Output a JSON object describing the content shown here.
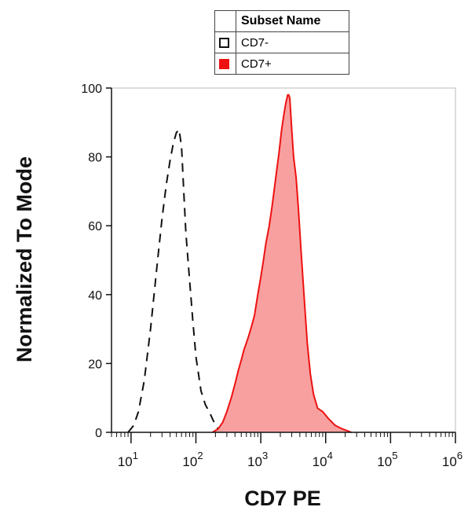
{
  "legend": {
    "header": "Subset Name",
    "items": [
      {
        "label": "CD7-",
        "style": "open-dashed",
        "color": "#111111"
      },
      {
        "label": "CD7+",
        "style": "filled",
        "color": "#ee1111"
      }
    ]
  },
  "chart_data": {
    "type": "area",
    "title": "",
    "xlabel": "CD7 PE",
    "ylabel": "Normalized To Mode",
    "xscale": "log",
    "xlim": [
      5,
      1000000
    ],
    "ylim": [
      0,
      100
    ],
    "yticks": [
      0,
      20,
      40,
      60,
      80,
      100
    ],
    "xticks": [
      {
        "base": "10",
        "exp": "1",
        "value": 10
      },
      {
        "base": "10",
        "exp": "2",
        "value": 100
      },
      {
        "base": "10",
        "exp": "3",
        "value": 1000
      },
      {
        "base": "10",
        "exp": "4",
        "value": 10000
      },
      {
        "base": "10",
        "exp": "5",
        "value": 100000
      },
      {
        "base": "10",
        "exp": "6",
        "value": 1000000
      }
    ],
    "grid": false,
    "legend_position": "top-center",
    "series": [
      {
        "name": "CD7-",
        "style": "dashed-outline",
        "color": "#111111",
        "x": [
          9,
          11,
          13,
          16,
          20,
          25,
          30,
          35,
          40,
          45,
          50,
          55,
          60,
          65,
          70,
          80,
          90,
          100,
          120,
          140,
          160,
          190,
          220,
          250
        ],
        "y": [
          0,
          2,
          6,
          15,
          30,
          48,
          62,
          72,
          79,
          84,
          87,
          88,
          83,
          70,
          58,
          44,
          32,
          22,
          12,
          8,
          6,
          3,
          1,
          0
        ]
      },
      {
        "name": "CD7+",
        "style": "filled",
        "color": "#ee1111",
        "fill": "#f8a0a0",
        "x": [
          180,
          220,
          260,
          300,
          350,
          400,
          450,
          500,
          550,
          600,
          650,
          700,
          750,
          800,
          900,
          1000,
          1100,
          1200,
          1350,
          1500,
          1700,
          1900,
          2100,
          2300,
          2450,
          2600,
          2700,
          2800,
          3000,
          3200,
          3500,
          3800,
          4200,
          4700,
          5200,
          5800,
          6500,
          7500,
          9000,
          11000,
          14000,
          18000,
          25000
        ],
        "y": [
          0,
          1,
          3,
          6,
          10,
          14,
          18,
          21,
          24,
          26,
          28,
          30,
          32,
          34,
          40,
          45,
          50,
          55,
          60,
          66,
          74,
          81,
          88,
          93,
          96,
          98,
          98,
          97,
          88,
          80,
          74,
          65,
          52,
          38,
          26,
          17,
          11,
          7,
          6,
          4,
          2,
          1,
          0
        ]
      }
    ]
  }
}
